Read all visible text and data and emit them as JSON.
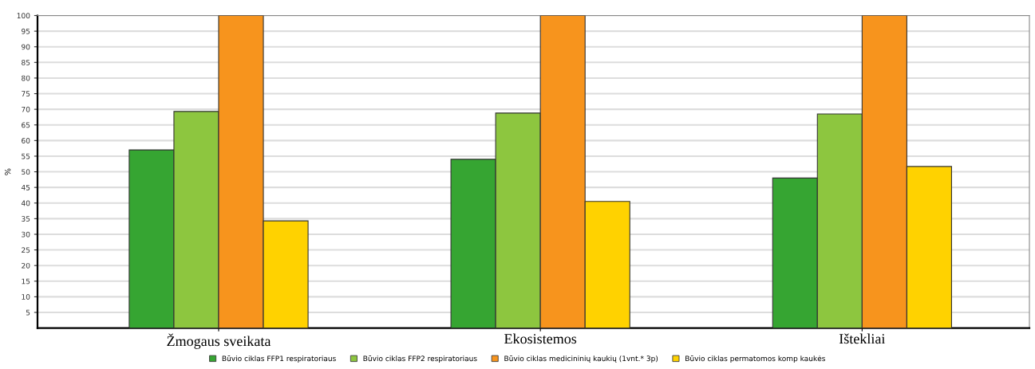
{
  "chart_data": {
    "type": "bar",
    "ylabel": "%",
    "categories": [
      "Žmogaus sveikata",
      "Ekosistemos",
      "Ištekliai"
    ],
    "series": [
      {
        "name": "Būvio ciklas FFP1 respiratoriaus",
        "color": "#36a532",
        "values": [
          57,
          54,
          48
        ]
      },
      {
        "name": "Būvio ciklas FFP2 respiratoriaus",
        "color": "#8dc63f",
        "values": [
          69.3,
          68.8,
          68.5
        ]
      },
      {
        "name": "Būvio ciklas medicininių kaukių (1vnt.* 3p)",
        "color": "#f7941d",
        "values": [
          100,
          100,
          100
        ]
      },
      {
        "name": "Būvio ciklas permatomos komp kaukės",
        "color": "#ffd200",
        "values": [
          34.3,
          40.5,
          51.7
        ]
      }
    ],
    "ylim": [
      0,
      100
    ],
    "yticks": [
      5,
      10,
      15,
      20,
      25,
      30,
      35,
      40,
      45,
      50,
      55,
      60,
      65,
      70,
      75,
      80,
      85,
      90,
      95,
      100
    ],
    "grid": "y",
    "legend": "bottom"
  }
}
